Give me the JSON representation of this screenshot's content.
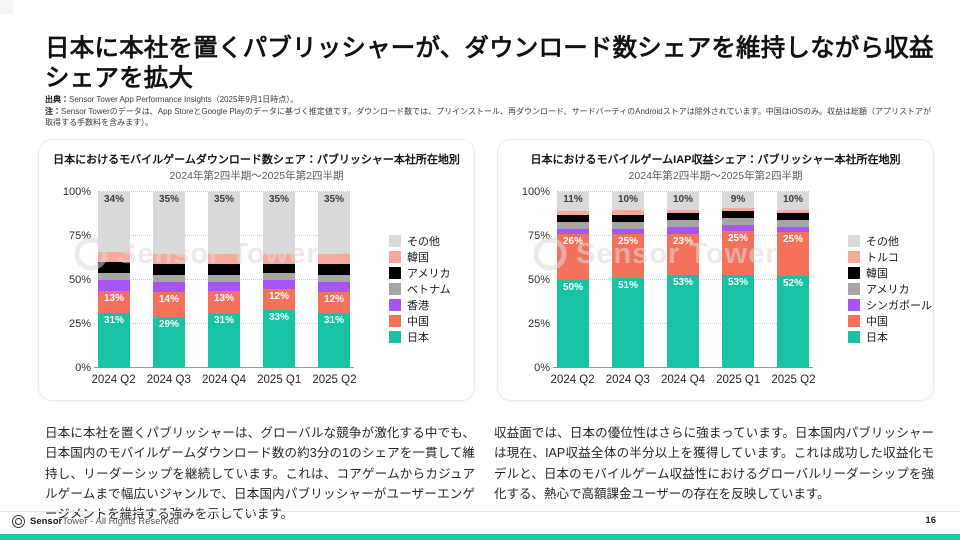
{
  "slide": {
    "title": "日本に本社を置くパブリッシャーが、ダウンロード数シェアを維持しながら収益シェアを拡大",
    "source_label": "出典：",
    "source_text": "Sensor Tower App Performance Insights（2025年9月1日時点）。",
    "note_label": "注：",
    "note_text": "Sensor Towerのデータは、App StoreとGoogle Playのデータに基づく推定値です。ダウンロード数では、プリインストール、再ダウンロード、サードパーティのAndroidストアは除外されています。中国はiOSのみ。収益は総額（アプリストアが取得する手数料を含みます）。",
    "watermark": "Sensor Tower",
    "page_number": "16",
    "footer": {
      "brand_bold": "Sensor",
      "brand_light": "Tower",
      "rights": " - All Rights Reserved"
    }
  },
  "paragraphs": {
    "left": "日本に本社を置くパブリッシャーは、グローバルな競争が激化する中でも、日本国内のモバイルゲームダウンロード数の約3分の1のシェアを一貫して維持し、リーダーシップを継続しています。これは、コアゲームからカジュアルゲームまで幅広いジャンルで、日本国内パブリッシャーがユーザーエンゲージメントを維持する強みを示しています。",
    "right": "収益面では、日本の優位性はさらに強まっています。日本国内パブリッシャーは現在、IAP収益全体の半分以上を獲得しています。これは成功した収益化モデルと、日本のモバイルゲーム収益性におけるグローバルリーダーシップを強化する、熱心で高額課金ユーザーの存在を反映しています。"
  },
  "colors": {
    "japan_teal": "#17c3a2",
    "china_coral": "#f4715b",
    "purple": "#a855f7",
    "mid_gray": "#a6a6a6",
    "black": "#000000",
    "light_pink": "#f6a99c",
    "light_gray": "#d9d9d9",
    "accent_bar": "#1ec9a4"
  },
  "chart_data": [
    {
      "type": "bar",
      "stacked": true,
      "title": "日本におけるモバイルゲームダウンロード数シェア：パブリッシャー本社所在地別",
      "subtitle": "2024年第2四半期〜2025年第2四半期",
      "categories": [
        "2024 Q2",
        "2024 Q3",
        "2024 Q4",
        "2025 Q1",
        "2025 Q2"
      ],
      "ylim": [
        0,
        100
      ],
      "yticks": [
        "0%",
        "25%",
        "50%",
        "75%",
        "100%"
      ],
      "grid": true,
      "legend_position": "right",
      "legend": [
        "その他",
        "韓国",
        "アメリカ",
        "ベトナム",
        "香港",
        "中国",
        "日本"
      ],
      "series": [
        {
          "name": "日本",
          "color": "#17c3a2",
          "values": [
            31,
            29,
            31,
            33,
            31
          ],
          "labels": [
            "31%",
            "29%",
            "31%",
            "33%",
            "31%"
          ],
          "label_color": "#ffffff"
        },
        {
          "name": "中国",
          "color": "#f4715b",
          "values": [
            13,
            14,
            13,
            12,
            12
          ],
          "labels": [
            "13%",
            "14%",
            "13%",
            "12%",
            "12%"
          ],
          "label_color": "#ffffff"
        },
        {
          "name": "香港",
          "color": "#a855f7",
          "values": [
            6,
            6,
            5,
            5,
            6
          ]
        },
        {
          "name": "ベトナム",
          "color": "#a6a6a6",
          "values": [
            4,
            4,
            4,
            4,
            4
          ]
        },
        {
          "name": "アメリカ",
          "color": "#000000",
          "values": [
            6,
            6,
            6,
            5,
            6
          ]
        },
        {
          "name": "韓国",
          "color": "#f6a99c",
          "values": [
            6,
            6,
            6,
            6,
            6
          ]
        },
        {
          "name": "その他",
          "color": "#d9d9d9",
          "values": [
            34,
            35,
            35,
            35,
            35
          ],
          "labels": [
            "34%",
            "35%",
            "35%",
            "35%",
            "35%"
          ],
          "label_color": "#3d3d3d"
        }
      ]
    },
    {
      "type": "bar",
      "stacked": true,
      "title": "日本におけるモバイルゲームIAP収益シェア：パブリッシャー本社所在地別",
      "subtitle": "2024年第2四半期〜2025年第2四半期",
      "categories": [
        "2024 Q2",
        "2024 Q3",
        "2024 Q4",
        "2025 Q1",
        "2025 Q2"
      ],
      "ylim": [
        0,
        100
      ],
      "yticks": [
        "0%",
        "25%",
        "50%",
        "75%",
        "100%"
      ],
      "grid": true,
      "legend_position": "right",
      "legend": [
        "その他",
        "トルコ",
        "韓国",
        "アメリカ",
        "シンガポール",
        "中国",
        "日本"
      ],
      "series": [
        {
          "name": "日本",
          "color": "#17c3a2",
          "values": [
            50,
            51,
            53,
            53,
            52
          ],
          "labels": [
            "50%",
            "51%",
            "53%",
            "53%",
            "52%"
          ],
          "label_color": "#ffffff"
        },
        {
          "name": "中国",
          "color": "#f4715b",
          "values": [
            26,
            25,
            23,
            25,
            25
          ],
          "labels": [
            "26%",
            "25%",
            "23%",
            "25%",
            "25%"
          ],
          "label_color": "#ffffff"
        },
        {
          "name": "シンガポール",
          "color": "#a855f7",
          "values": [
            3,
            3,
            4,
            3,
            3
          ]
        },
        {
          "name": "アメリカ",
          "color": "#a6a6a6",
          "values": [
            4,
            4,
            4,
            4,
            4
          ]
        },
        {
          "name": "韓国",
          "color": "#000000",
          "values": [
            4,
            4,
            4,
            4,
            4
          ]
        },
        {
          "name": "トルコ",
          "color": "#f6a99c",
          "values": [
            2,
            3,
            2,
            2,
            2
          ]
        },
        {
          "name": "その他",
          "color": "#d9d9d9",
          "values": [
            11,
            10,
            10,
            9,
            10
          ],
          "labels": [
            "11%",
            "10%",
            "10%",
            "9%",
            "10%"
          ],
          "label_color": "#3d3d3d"
        }
      ]
    }
  ]
}
